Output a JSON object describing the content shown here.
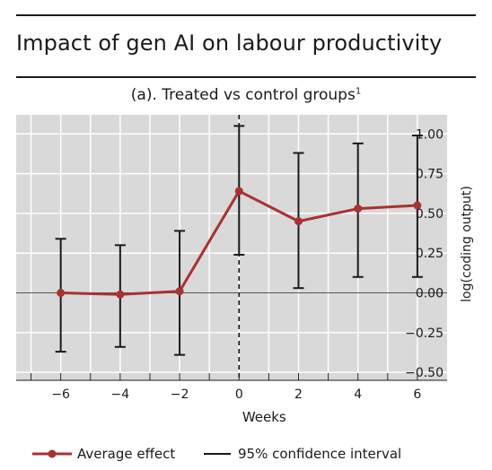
{
  "header": {
    "title": "Impact of gen AI on labour productivity",
    "subtitle": "(a). Treated vs control groups",
    "subtitle_footnote": "1"
  },
  "chart_data": {
    "type": "line",
    "xlabel": "Weeks",
    "ylabel": "log(coding output)",
    "x_ticks": [
      -6,
      -4,
      -2,
      0,
      2,
      4,
      6
    ],
    "x_tick_labels": [
      "−6",
      "−4",
      "−2",
      "0",
      "2",
      "4",
      "6"
    ],
    "xlim": [
      -7.5,
      7
    ],
    "ylim": [
      -0.55,
      1.12
    ],
    "y_ticks": [
      1.0,
      0.75,
      0.5,
      0.25,
      0.0,
      -0.25,
      -0.5
    ],
    "y_tick_labels": [
      "1.00",
      "0.75",
      "0.50",
      "0.25",
      "0.00",
      "−0.25",
      "−0.50"
    ],
    "y_axis_position": "right",
    "grid": true,
    "series": [
      {
        "name": "Average effect",
        "color": "#a83232",
        "points": [
          {
            "x": -6,
            "y": 0.0,
            "ci_low": -0.37,
            "ci_high": 0.34
          },
          {
            "x": -4,
            "y": -0.01,
            "ci_low": -0.34,
            "ci_high": 0.3
          },
          {
            "x": -2,
            "y": 0.01,
            "ci_low": -0.39,
            "ci_high": 0.39
          },
          {
            "x": 0,
            "y": 0.64,
            "ci_low": 0.24,
            "ci_high": 1.05
          },
          {
            "x": 2,
            "y": 0.45,
            "ci_low": 0.03,
            "ci_high": 0.88
          },
          {
            "x": 4,
            "y": 0.53,
            "ci_low": 0.1,
            "ci_high": 0.94
          },
          {
            "x": 6,
            "y": 0.55,
            "ci_low": 0.1,
            "ci_high": 0.99
          }
        ]
      }
    ],
    "ci_label": "95% confidence interval",
    "ci_color": "#1a1a1a",
    "reference_line": {
      "x": 0,
      "style": "dashed"
    }
  },
  "legend": {
    "average_label": "Average effect",
    "ci_label": "95% confidence interval"
  }
}
